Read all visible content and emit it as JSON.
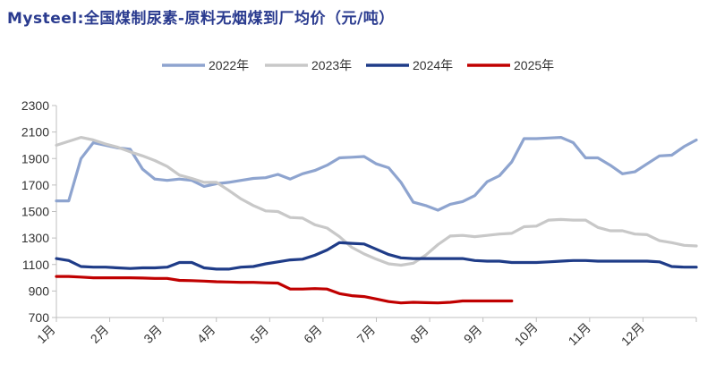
{
  "chart_data": {
    "type": "line",
    "title": "Mysteel:全国煤制尿素-原料无烟煤到厂均价（元/吨）",
    "xlabel": "",
    "ylabel": "",
    "ylim": [
      700,
      2300
    ],
    "y_ticks": [
      700,
      900,
      1100,
      1300,
      1500,
      1700,
      1900,
      2100,
      2300
    ],
    "x_tick_labels": [
      "1月",
      "2月",
      "3月",
      "4月",
      "5月",
      "6月",
      "7月",
      "8月",
      "9月",
      "10月",
      "11月",
      "12月"
    ],
    "x_range_weeks": [
      1,
      53
    ],
    "legend_position": "top-center",
    "grid": false,
    "series": [
      {
        "name": "2022年",
        "color": "#8ea4cf",
        "x": [
          1,
          2,
          3,
          4,
          5,
          6,
          7,
          8,
          9,
          10,
          11,
          12,
          13,
          14,
          15,
          16,
          17,
          18,
          19,
          20,
          21,
          22,
          23,
          24,
          25,
          26,
          27,
          28,
          29,
          30,
          31,
          32,
          33,
          34,
          35,
          36,
          37,
          38,
          39,
          40,
          41,
          42,
          43,
          44,
          45,
          46,
          47,
          48,
          49,
          50,
          51,
          52,
          53
        ],
        "values": [
          1580,
          1580,
          1900,
          2020,
          2000,
          1980,
          1970,
          1820,
          1745,
          1735,
          1745,
          1735,
          1690,
          1710,
          1720,
          1735,
          1750,
          1755,
          1780,
          1745,
          1785,
          1810,
          1850,
          1905,
          1910,
          1915,
          1860,
          1830,
          1720,
          1570,
          1545,
          1510,
          1555,
          1575,
          1620,
          1725,
          1770,
          1875,
          2050,
          2050,
          2055,
          2060,
          2020,
          1905,
          1905,
          1850,
          1785,
          1800,
          1860,
          1920,
          1925,
          1990,
          2040
        ]
      },
      {
        "name": "2023年",
        "color": "#c8c8c8",
        "x": [
          1,
          2,
          3,
          4,
          5,
          6,
          7,
          8,
          9,
          10,
          11,
          12,
          13,
          14,
          15,
          16,
          17,
          18,
          19,
          20,
          21,
          22,
          23,
          24,
          25,
          26,
          27,
          28,
          29,
          30,
          31,
          32,
          33,
          34,
          35,
          36,
          37,
          38,
          39,
          40,
          41,
          42,
          43,
          44,
          45,
          46,
          47,
          48,
          49,
          50,
          51,
          52,
          53
        ],
        "values": [
          2000,
          2030,
          2060,
          2040,
          2010,
          1985,
          1950,
          1920,
          1885,
          1840,
          1775,
          1750,
          1720,
          1720,
          1660,
          1595,
          1545,
          1505,
          1500,
          1455,
          1450,
          1400,
          1375,
          1310,
          1230,
          1180,
          1140,
          1105,
          1095,
          1110,
          1170,
          1250,
          1315,
          1320,
          1310,
          1320,
          1330,
          1335,
          1385,
          1390,
          1435,
          1440,
          1435,
          1435,
          1380,
          1355,
          1355,
          1330,
          1325,
          1280,
          1265,
          1245,
          1240
        ]
      },
      {
        "name": "2024年",
        "color": "#1f3c88",
        "x": [
          1,
          2,
          3,
          4,
          5,
          6,
          7,
          8,
          9,
          10,
          11,
          12,
          13,
          14,
          15,
          16,
          17,
          18,
          19,
          20,
          21,
          22,
          23,
          24,
          25,
          26,
          27,
          28,
          29,
          30,
          31,
          32,
          33,
          34,
          35,
          36,
          37,
          38,
          39,
          40,
          41,
          42,
          43,
          44,
          45,
          46,
          47,
          48,
          49,
          50,
          51,
          52,
          53
        ],
        "values": [
          1145,
          1130,
          1085,
          1080,
          1080,
          1075,
          1070,
          1075,
          1075,
          1080,
          1115,
          1115,
          1075,
          1065,
          1065,
          1080,
          1085,
          1105,
          1120,
          1135,
          1140,
          1170,
          1210,
          1265,
          1260,
          1255,
          1215,
          1175,
          1150,
          1145,
          1145,
          1145,
          1145,
          1145,
          1130,
          1125,
          1125,
          1115,
          1115,
          1115,
          1120,
          1125,
          1130,
          1130,
          1125,
          1125,
          1125,
          1125,
          1125,
          1120,
          1085,
          1080,
          1080
        ]
      },
      {
        "name": "2025年",
        "color": "#c00000",
        "x": [
          1,
          2,
          3,
          4,
          5,
          6,
          7,
          8,
          9,
          10,
          11,
          12,
          13,
          14,
          15,
          16,
          17,
          18,
          19,
          20,
          21,
          22,
          23,
          24,
          25,
          26,
          27,
          28,
          29,
          30,
          31,
          32,
          33,
          34,
          35,
          36,
          37,
          38
        ],
        "values": [
          1010,
          1010,
          1005,
          1000,
          1000,
          1000,
          1000,
          998,
          995,
          995,
          980,
          978,
          975,
          970,
          968,
          965,
          965,
          962,
          960,
          915,
          915,
          918,
          915,
          880,
          865,
          858,
          840,
          820,
          810,
          815,
          812,
          810,
          815,
          825,
          825,
          825,
          825,
          825
        ]
      }
    ]
  }
}
